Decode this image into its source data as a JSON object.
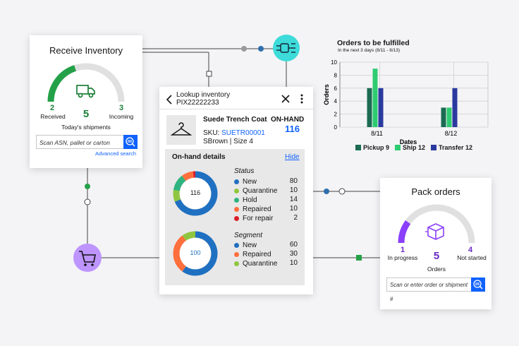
{
  "colors": {
    "green": "#24a148",
    "blue": "#0f62fe",
    "purple": "#8a3ffc",
    "teal": "#08bdba",
    "lightgreen": "#8fc63f",
    "darkred": "#da1e28",
    "orange": "#ff832b"
  },
  "receive": {
    "title": "Receive Inventory",
    "received_count": "2",
    "received_label": "Received",
    "total_count": "5",
    "total_label": "Today's shipments",
    "incoming_count": "3",
    "incoming_label": "Incoming",
    "progress": 0.4,
    "scan_placeholder": "Scan ASN, pallet or carton",
    "advanced_search": "Advanced search",
    "icon": "truck-icon"
  },
  "lookup": {
    "title": "Lookup inventory",
    "code": "PIX22222233",
    "product_name": "Suede Trench Coat",
    "onhand_label": "ON-HAND",
    "onhand_value": "116",
    "sku_label": "SKU:",
    "sku_value": "SUETR00001",
    "variant": "SBrown | Size 4",
    "details_label": "On-hand details",
    "hide_label": "Hide",
    "status": {
      "heading": "Status",
      "total": "116",
      "items": [
        {
          "label": "New",
          "value": "80",
          "color": "#1f70c1"
        },
        {
          "label": "Quarantine",
          "value": "10",
          "color": "#8fc63f"
        },
        {
          "label": "Hold",
          "value": "14",
          "color": "#2fb37f"
        },
        {
          "label": "Repaired",
          "value": "10",
          "color": "#ff6f3c"
        },
        {
          "label": "For repair",
          "value": "2",
          "color": "#da1e28"
        }
      ]
    },
    "segment": {
      "heading": "Segment",
      "total": "100",
      "items": [
        {
          "label": "New",
          "value": "60",
          "color": "#1f70c1"
        },
        {
          "label": "Repaired",
          "value": "30",
          "color": "#ff6f3c"
        },
        {
          "label": "Quarantine",
          "value": "10",
          "color": "#8fc63f"
        }
      ]
    }
  },
  "orders_chart": {
    "title": "Orders to be fulfilled",
    "subtitle": "In the next 3 days (8/11 - 8/13)",
    "chart_data": {
      "type": "bar",
      "categories": [
        "8/11",
        "8/12"
      ],
      "series": [
        {
          "name": "Pickup 9",
          "values": [
            6,
            3
          ],
          "color": "#1b6b52"
        },
        {
          "name": "Ship 12",
          "values": [
            9,
            3
          ],
          "color": "#2ecc71"
        },
        {
          "name": "Transfer 12",
          "values": [
            6,
            6
          ],
          "color": "#2b3a9e"
        }
      ],
      "xlabel": "Dates",
      "ylabel": "Orders",
      "ylim": [
        0,
        10
      ],
      "yticks": [
        "0",
        "2",
        "4",
        "6",
        "8",
        "10"
      ],
      "grid": true,
      "legend": "bottom"
    }
  },
  "pack": {
    "title": "Pack orders",
    "in_progress_count": "1",
    "in_progress_label": "In progress",
    "total_count": "5",
    "total_label": "Orders",
    "not_started_count": "4",
    "not_started_label": "Not started",
    "progress": 0.2,
    "scan_placeholder": "Scan or enter order or shipment #",
    "icon": "package-icon"
  },
  "nodes": {
    "circuit_icon": "circuit-icon",
    "cart_icon": "shopping-cart-icon"
  }
}
